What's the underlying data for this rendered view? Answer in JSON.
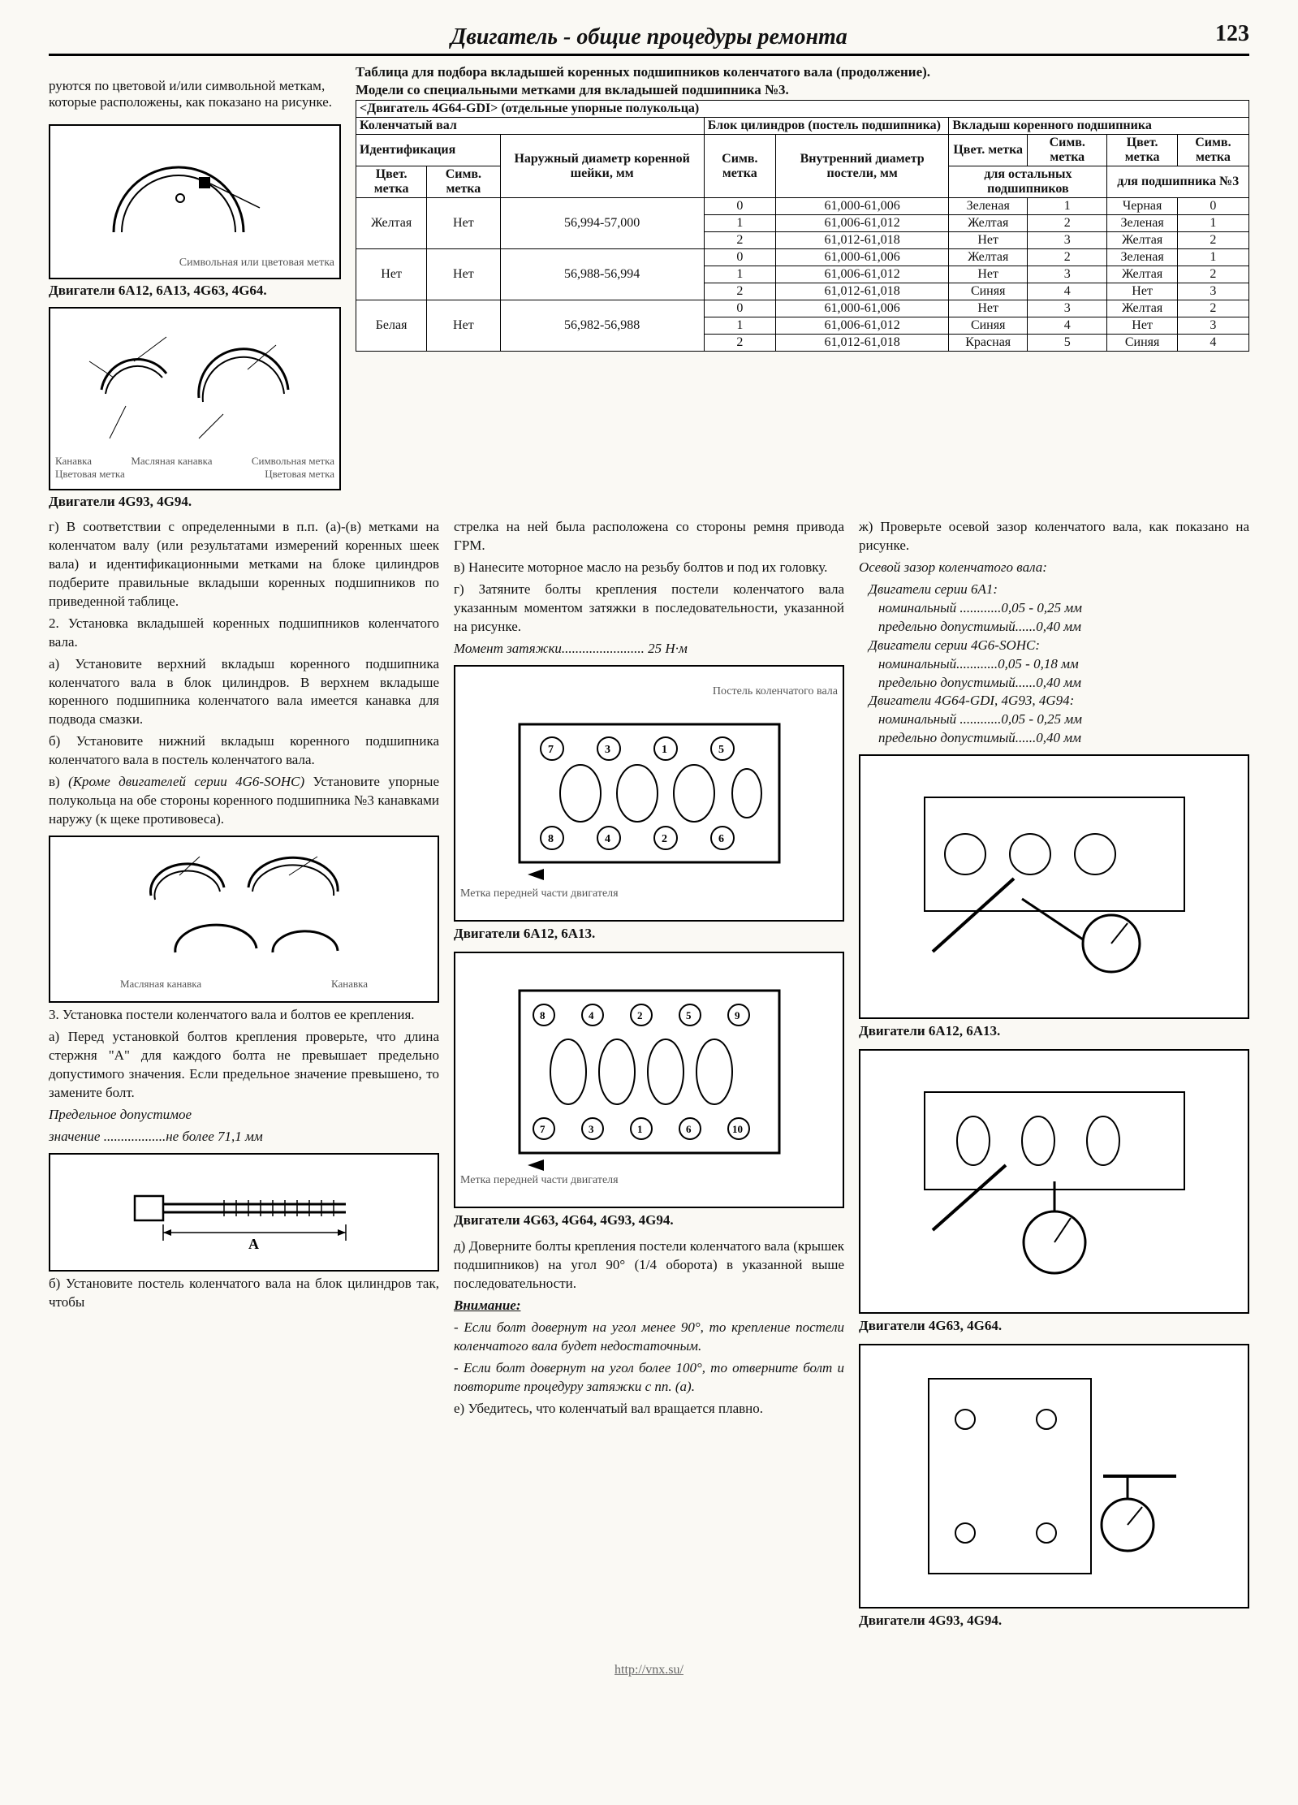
{
  "header": {
    "title": "Двигатель - общие процедуры ремонта",
    "page_num": "123"
  },
  "col1": {
    "p1": "руются по цветовой и/или символьной меткам, которые расположены, как показано на рисунке.",
    "fig1_labels": {
      "a": "Символьная или цветовая метка"
    },
    "cap1": "Двигатели 6A12, 6A13, 4G63, 4G64.",
    "fig2_labels": {
      "a": "Масляная канавка",
      "b": "Канавка",
      "c": "Символьная метка",
      "d": "Цветовая метка",
      "e": "Цветовая метка"
    },
    "cap2": "Двигатели 4G93, 4G94.",
    "p2": "г) В соответствии с определенными в п.п. (а)-(в) метками на коленчатом валу (или результатами измерений коренных шеек вала) и идентификационными метками на блоке цилиндров подберите правильные вкладыши коренных подшипников по приведенной таблице.",
    "p3": "2. Установка вкладышей коренных подшипников коленчатого вала.",
    "p4": "а) Установите верхний вкладыш коренного подшипника коленчатого вала в блок цилиндров. В верхнем вкладыше коренного подшипника коленчатого вала имеется канавка для подвода смазки.",
    "p5": "б) Установите нижний вкладыш коренного подшипника коленчатого вала в постель коленчатого вала.",
    "p6_a": "в) ",
    "p6_b": "(Кроме двигателей серии 4G6-SOHC)",
    "p6_c": " Установите упорные полукольца на обе стороны коренного подшипника №3 канавками наружу (к щеке противовеса).",
    "fig3_labels": {
      "a": "Масляная канавка",
      "b": "Канавка"
    },
    "p7": "3. Установка постели коленчатого вала и болтов ее крепления.",
    "p8": "а) Перед установкой болтов крепления проверьте, что длина стержня \"А\" для каждого болта не превышает предельно допустимого значения. Если предельное значение превышено, то замените болт.",
    "p9_a": "Предельное допустимое",
    "p9_b": "значение ..................не более 71,1 мм",
    "fig4_label": "A",
    "p10": "б) Установите постель коленчатого вала на блок цилиндров так, чтобы"
  },
  "table_block": {
    "title1": "Таблица для подбора вкладышей коренных подшипников коленчатого вала (продолжение).",
    "title2": "Модели со специальными метками для вкладышей подшипника №3.",
    "hdr_engine": "<Двигатель 4G64-GDI> (отдельные упорные полукольца)",
    "hdr_crank": "Коленчатый вал",
    "hdr_block": "Блок цилиндров (постель подшипника)",
    "hdr_bearing": "Вкладыш коренного подшипника",
    "hdr_ident": "Идентификация",
    "hdr_od": "Наружный диаметр коренной шейки, мм",
    "hdr_color": "Цвет. метка",
    "hdr_symb": "Симв. метка",
    "hdr_id": "Внутренний диаметр постели, мм",
    "hdr_rest": "для остальных подшипников",
    "hdr_n3": "для подшипника №3",
    "rows": [
      {
        "c": "Желтая",
        "s": "Нет",
        "od": "56,994-57,000",
        "sub": [
          {
            "bs": "0",
            "id": "61,000-61,006",
            "rc": "Зеленая",
            "rs": "1",
            "nc": "Черная",
            "ns": "0"
          },
          {
            "bs": "1",
            "id": "61,006-61,012",
            "rc": "Желтая",
            "rs": "2",
            "nc": "Зеленая",
            "ns": "1"
          },
          {
            "bs": "2",
            "id": "61,012-61,018",
            "rc": "Нет",
            "rs": "3",
            "nc": "Желтая",
            "ns": "2"
          }
        ]
      },
      {
        "c": "Нет",
        "s": "Нет",
        "od": "56,988-56,994",
        "sub": [
          {
            "bs": "0",
            "id": "61,000-61,006",
            "rc": "Желтая",
            "rs": "2",
            "nc": "Зеленая",
            "ns": "1"
          },
          {
            "bs": "1",
            "id": "61,006-61,012",
            "rc": "Нет",
            "rs": "3",
            "nc": "Желтая",
            "ns": "2"
          },
          {
            "bs": "2",
            "id": "61,012-61,018",
            "rc": "Синяя",
            "rs": "4",
            "nc": "Нет",
            "ns": "3"
          }
        ]
      },
      {
        "c": "Белая",
        "s": "Нет",
        "od": "56,982-56,988",
        "sub": [
          {
            "bs": "0",
            "id": "61,000-61,006",
            "rc": "Нет",
            "rs": "3",
            "nc": "Желтая",
            "ns": "2"
          },
          {
            "bs": "1",
            "id": "61,006-61,012",
            "rc": "Синяя",
            "rs": "4",
            "nc": "Нет",
            "ns": "3"
          },
          {
            "bs": "2",
            "id": "61,012-61,018",
            "rc": "Красная",
            "rs": "5",
            "nc": "Синяя",
            "ns": "4"
          }
        ]
      }
    ]
  },
  "col2": {
    "p1": "стрелка на ней была расположена со стороны ремня привода ГРМ.",
    "p2": "в) Нанесите моторное масло на резьбу болтов и под их головку.",
    "p3": "г) Затяните болты крепления постели коленчатого вала указанным моментом затяжки в последовательности, указанной на рисунке.",
    "p4": "Момент затяжки........................ 25 Н·м",
    "fig1_top": "Постель коленчатого вала",
    "fig1_bot": "Метка передней части двигателя",
    "cap1": "Двигатели 6A12, 6A13.",
    "fig2_bot": "Метка передней части двигателя",
    "cap2": "Двигатели 4G63, 4G64, 4G93, 4G94.",
    "p5": "д) Доверните болты крепления постели коленчатого вала (крышек подшипников) на угол 90° (1/4 оборота) в указанной выше последовательности.",
    "p6_hdr": "Внимание:",
    "p6a": "- Если болт довернут на угол менее 90°, то крепление постели коленчатого вала будет недостаточным.",
    "p6b": "- Если болт довернут на угол более 100°, то отверните болт и повторите процедуру затяжки с пп. (а).",
    "p7": "е) Убедитесь, что коленчатый вал вращается плавно."
  },
  "col3": {
    "p1": "ж) Проверьте осевой зазор коленчатого вала, как показано на рисунке.",
    "p2": "Осевой зазор коленчатого вала:",
    "s1a": "Двигатели серии 6A1:",
    "s1b": "номинальный ............0,05 - 0,25 мм",
    "s1c": "предельно допустимый......0,40 мм",
    "s2a": "Двигатели серии 4G6-SOHC:",
    "s2b": "номинальный............0,05 - 0,18 мм",
    "s2c": "предельно допустимый......0,40 мм",
    "s3a": "Двигатели 4G64-GDI, 4G93, 4G94:",
    "s3b": "номинальный ............0,05 - 0,25 мм",
    "s3c": "предельно допустимый......0,40 мм",
    "cap1": "Двигатели 6A12, 6A13.",
    "cap2": "Двигатели 4G63, 4G64.",
    "cap3": "Двигатели 4G93, 4G94."
  },
  "footer": "http://vnx.su/",
  "style": {
    "page_bg": "#faf9f4",
    "border_color": "#000000",
    "text_color": "#111111",
    "base_fontsize": 17,
    "title_fontsize": 28,
    "table_fontsize": 16
  }
}
